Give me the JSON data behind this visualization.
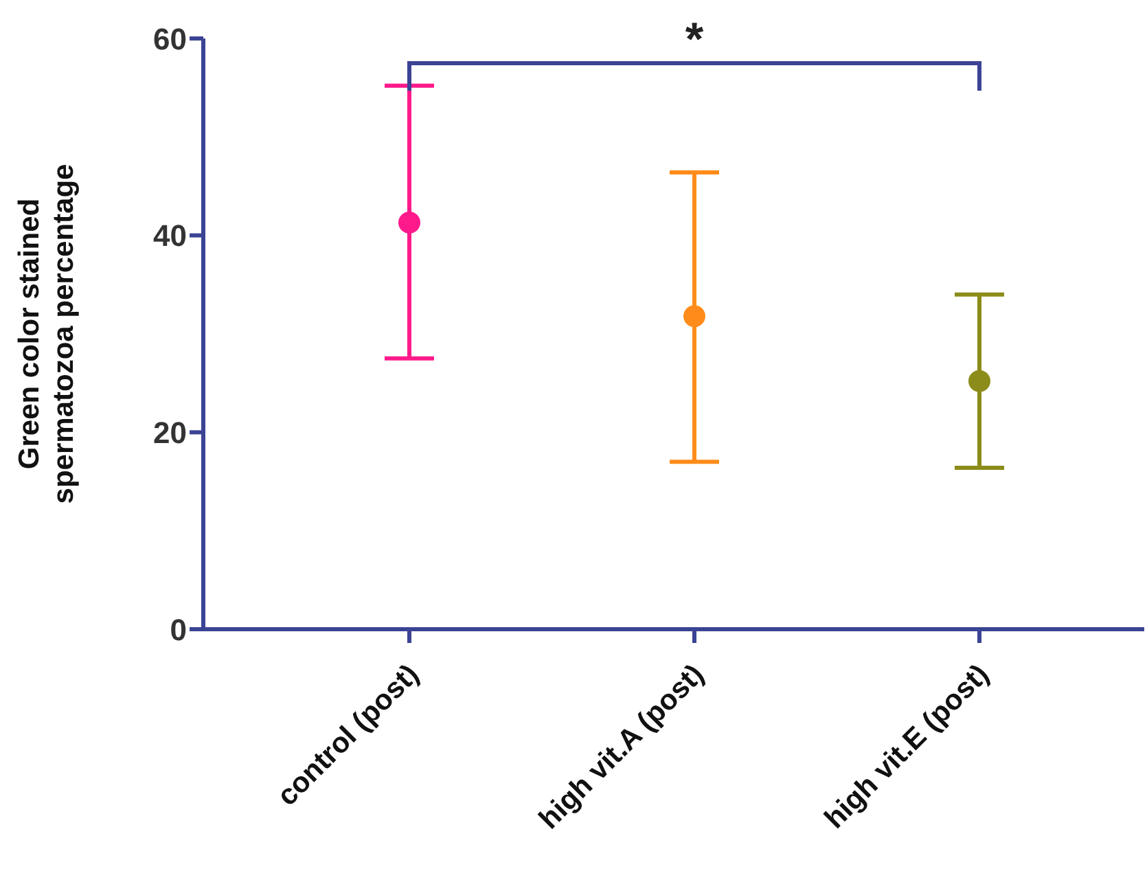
{
  "chart_data": {
    "type": "scatter",
    "ylabel": "Green color stained spermatozoa percentage",
    "categories": [
      "control (post)",
      "high vit.A (post)",
      "high vit.E (post)"
    ],
    "values": [
      41.3,
      31.8,
      25.2
    ],
    "colors": [
      "#ff1a8c",
      "#ff8c1a",
      "#8c8c1a"
    ],
    "errors": [
      [
        27.5,
        55.2
      ],
      [
        17.0,
        46.4
      ],
      [
        16.4,
        34.0
      ]
    ],
    "ylim": [
      0,
      60
    ],
    "yticks": [
      0,
      20,
      40,
      60
    ],
    "marker": "circle",
    "annotations": [
      "*"
    ]
  }
}
